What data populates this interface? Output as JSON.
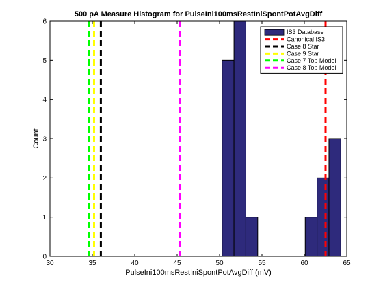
{
  "chart_data": {
    "type": "bar",
    "title": "500 pA Measure Histogram for PulseIni100msRestIniSpontPotAvgDiff",
    "xlabel": "PulseIni100msRestIniSpontPotAvgDiff (mV)",
    "ylabel": "Count",
    "xlim": [
      30,
      65
    ],
    "ylim": [
      0,
      6
    ],
    "xticks": [
      "30",
      "35",
      "40",
      "45",
      "50",
      "55",
      "60",
      "65"
    ],
    "yticks": [
      "0",
      "1",
      "2",
      "3",
      "4",
      "5",
      "6"
    ],
    "histogram": {
      "name": "IS3 Database",
      "color": "#2e2a7c",
      "bins": [
        {
          "x0": 50.3,
          "x1": 51.7,
          "count": 5
        },
        {
          "x0": 51.7,
          "x1": 53.1,
          "count": 6
        },
        {
          "x0": 53.1,
          "x1": 54.5,
          "count": 1
        },
        {
          "x0": 54.5,
          "x1": 55.9,
          "count": 0
        },
        {
          "x0": 55.9,
          "x1": 57.3,
          "count": 0
        },
        {
          "x0": 57.3,
          "x1": 58.7,
          "count": 0
        },
        {
          "x0": 58.7,
          "x1": 60.1,
          "count": 0
        },
        {
          "x0": 60.1,
          "x1": 61.5,
          "count": 1
        },
        {
          "x0": 61.5,
          "x1": 62.9,
          "count": 2
        },
        {
          "x0": 62.9,
          "x1": 64.3,
          "count": 3
        }
      ]
    },
    "vlines": [
      {
        "name": "Canonical IS3",
        "x": 62.5,
        "color": "#ff0000"
      },
      {
        "name": "Case 8 Star",
        "x": 36.0,
        "color": "#000000"
      },
      {
        "name": "Case 9 Star",
        "x": 35.2,
        "color": "#ffff00"
      },
      {
        "name": "Case 7 Top Model",
        "x": 34.6,
        "color": "#00ff00"
      },
      {
        "name": "Case 8 Top Model",
        "x": 45.3,
        "color": "#ff00ff"
      }
    ],
    "legend_position": "top-right",
    "grid": false
  }
}
